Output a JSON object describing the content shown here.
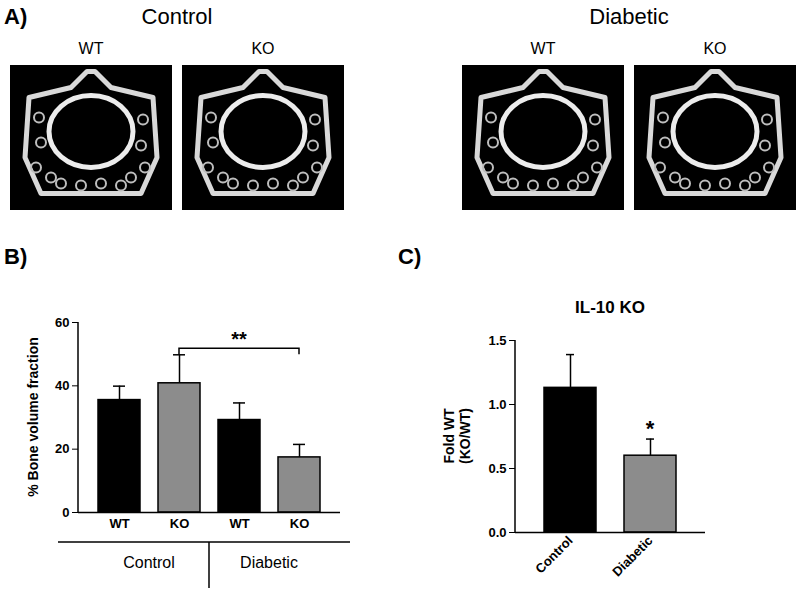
{
  "panel_a": {
    "label": "A)",
    "groups": [
      {
        "title": "Control",
        "images": [
          "WT",
          "KO"
        ]
      },
      {
        "title": "Diabetic",
        "images": [
          "WT",
          "KO"
        ]
      }
    ]
  },
  "chart_data": [
    {
      "type": "bar",
      "panel": "B)",
      "categories": [
        "WT",
        "KO",
        "WT",
        "KO"
      ],
      "values": [
        35.5,
        40.8,
        29.2,
        17.4
      ],
      "errors": [
        4.4,
        9.0,
        5.4,
        4.1
      ],
      "colors": [
        "#000000",
        "#8c8c8c",
        "#000000",
        "#8c8c8c"
      ],
      "ylabel": "% Bone volume fraction",
      "ylim": [
        0,
        60
      ],
      "yticks": [
        0,
        20,
        40,
        60
      ],
      "groups": [
        {
          "label": "Control",
          "size": 2
        },
        {
          "label": "Diabetic",
          "size": 2
        }
      ],
      "annotations": [
        {
          "text": "**",
          "from": 1,
          "to": 3
        }
      ]
    },
    {
      "type": "bar",
      "panel": "C)",
      "title": "IL-10 KO",
      "categories": [
        "Control",
        "Diabetic"
      ],
      "values": [
        1.13,
        0.6
      ],
      "errors": [
        0.26,
        0.13
      ],
      "colors": [
        "#000000",
        "#8c8c8c"
      ],
      "ylabel": [
        "Fold WT",
        "(KO/WT)"
      ],
      "ylim": [
        0,
        1.5
      ],
      "yticks": [
        {
          "value": 0,
          "label": "0.0"
        },
        {
          "value": 0.5,
          "label": "0.5"
        },
        {
          "value": 1,
          "label": "1.0"
        },
        {
          "value": 1.5,
          "label": "1.5"
        }
      ],
      "annotations": [
        {
          "text": "*",
          "at": 1
        }
      ]
    }
  ]
}
